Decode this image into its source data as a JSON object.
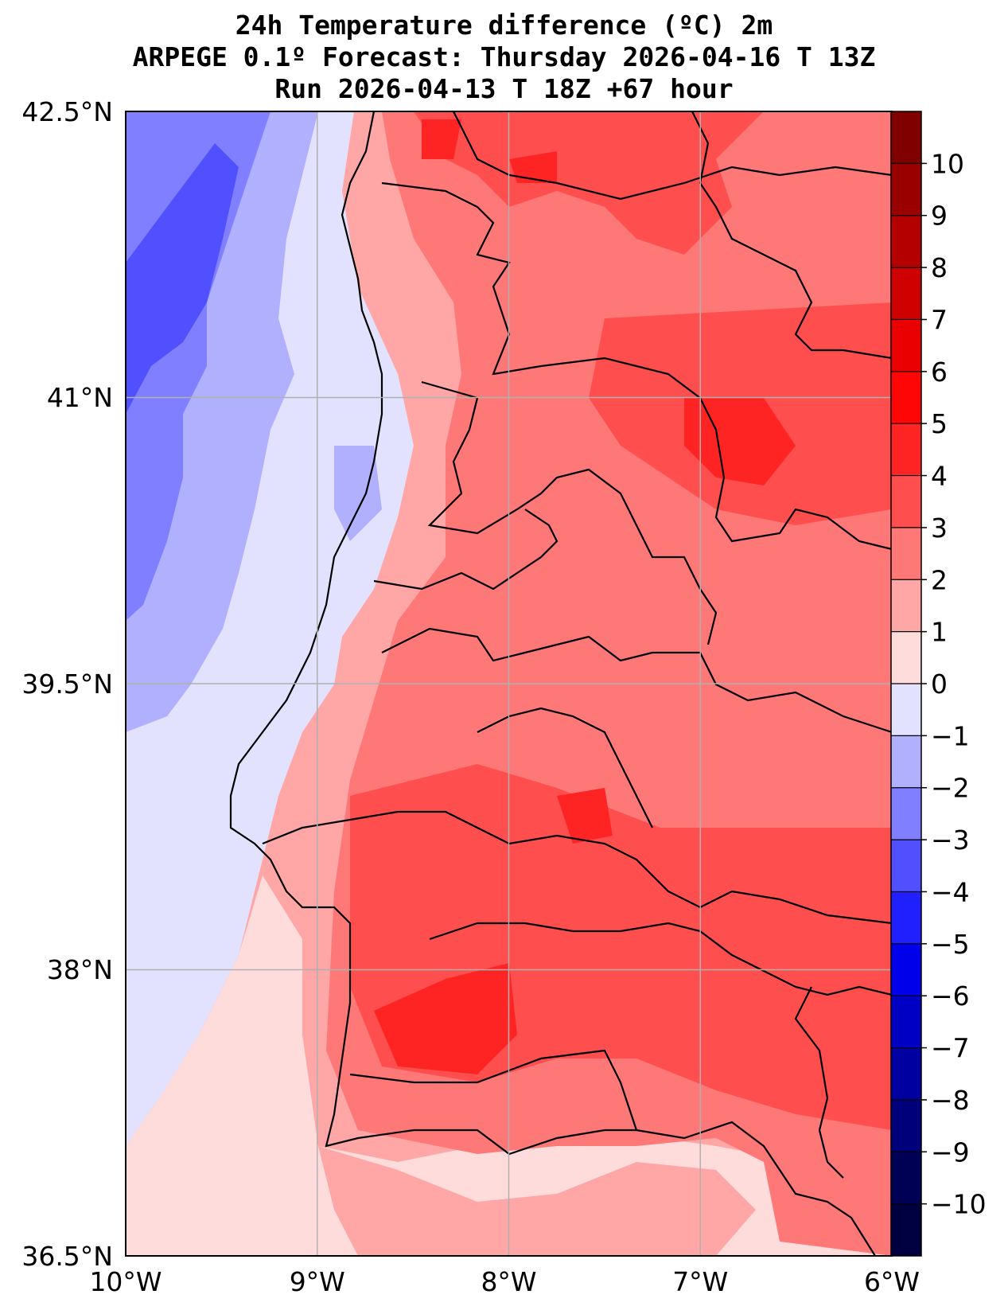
{
  "title": {
    "line1": "24h Temperature difference (ºC) 2m",
    "line2": "ARPEGE 0.1º Forecast: Thursday 2026-04-16 T 13Z",
    "line3": "Run 2026-04-13 T 18Z +67 hour"
  },
  "map": {
    "lon_range": [
      -10,
      -6
    ],
    "lat_range": [
      36.5,
      42.5
    ],
    "lon_ticks": [
      "10°W",
      "9°W",
      "8°W",
      "7°W",
      "6°W"
    ],
    "lat_ticks": [
      "42.5°N",
      "41°N",
      "39.5°N",
      "38°N",
      "36.5°N"
    ]
  },
  "colorbar": {
    "labels": [
      "10",
      "9",
      "8",
      "7",
      "6",
      "5",
      "4",
      "3",
      "2",
      "1",
      "0",
      "−1",
      "−2",
      "−3",
      "−4",
      "−5",
      "−6",
      "−7",
      "−8",
      "−9",
      "−10"
    ],
    "colors": [
      "#800000",
      "#9a0000",
      "#b50000",
      "#cf0000",
      "#ea0000",
      "#ff0606",
      "#ff2424",
      "#ff4e4e",
      "#ff7878",
      "#ffa6a6",
      "#ffdcdc",
      "#e2e2ff",
      "#b0b0ff",
      "#7f7fff",
      "#5050ff",
      "#2020ff",
      "#0000ea",
      "#0000c5",
      "#0000a0",
      "#00007a",
      "#000055",
      "#000040"
    ]
  }
}
